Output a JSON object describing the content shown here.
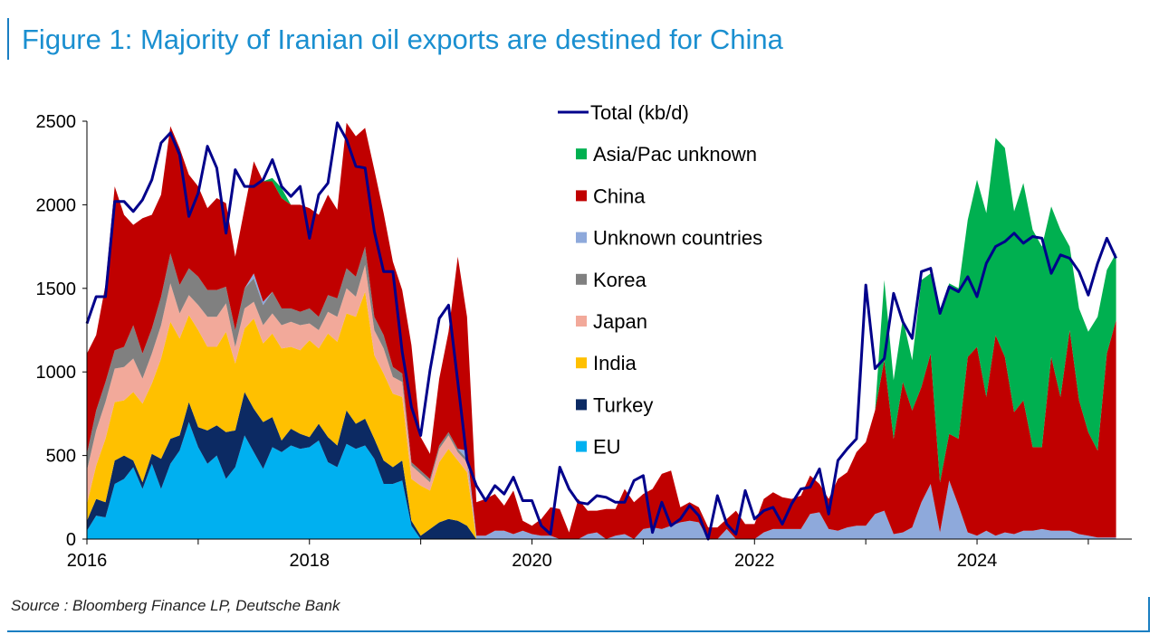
{
  "title": "Figure 1: Majority of Iranian oil exports are destined for China",
  "source": "Source : Bloomberg Finance LP, Deutsche Bank",
  "chart_data": {
    "type": "area",
    "stacked": true,
    "x_start": "2016-01",
    "x_step": "month",
    "x_ticks": [
      "2016",
      "2018",
      "2020",
      "2022",
      "2024"
    ],
    "y_ticks": [
      "0",
      "500",
      "1000",
      "1500",
      "2000",
      "2500"
    ],
    "ylim": [
      0,
      2500
    ],
    "legend_position": "top-right",
    "series": [
      {
        "name": "EU",
        "color": "#00b0f0",
        "values": [
          50,
          140,
          130,
          330,
          360,
          430,
          300,
          450,
          300,
          450,
          530,
          700,
          550,
          450,
          500,
          360,
          430,
          620,
          520,
          420,
          550,
          520,
          560,
          540,
          550,
          590,
          460,
          430,
          570,
          540,
          560,
          480,
          330,
          330,
          350,
          80
        ]
      },
      {
        "name": "Turkey",
        "color": "#0c2a63",
        "values": [
          60,
          100,
          90,
          140,
          140,
          40,
          40,
          60,
          180,
          150,
          90,
          120,
          120,
          200,
          180,
          280,
          220,
          260,
          260,
          280,
          180,
          70,
          100,
          90,
          60,
          100,
          150,
          130,
          200,
          150,
          160,
          120,
          140,
          100,
          120,
          30,
          20,
          60,
          100,
          120,
          110,
          80
        ]
      },
      {
        "name": "India",
        "color": "#ffc000",
        "values": [
          100,
          200,
          380,
          350,
          330,
          410,
          470,
          420,
          600,
          700,
          580,
          520,
          580,
          500,
          470,
          600,
          400,
          380,
          540,
          470,
          500,
          550,
          490,
          500,
          580,
          450,
          620,
          620,
          580,
          640,
          760,
          500,
          520,
          440,
          380,
          250,
          300,
          230,
          360,
          420,
          360,
          320
        ]
      },
      {
        "name": "Japan",
        "color": "#f2a99a",
        "values": [
          200,
          210,
          220,
          200,
          200,
          200,
          150,
          180,
          200,
          230,
          150,
          120,
          150,
          180,
          180,
          170,
          100,
          120,
          100,
          110,
          120,
          140,
          150,
          150,
          100,
          110,
          130,
          150,
          150,
          120,
          160,
          150,
          150,
          100,
          90,
          80,
          70,
          50,
          80,
          80,
          50,
          60
        ]
      },
      {
        "name": "Korea",
        "color": "#808080",
        "values": [
          100,
          120,
          120,
          110,
          120,
          200,
          150,
          150,
          170,
          180,
          170,
          160,
          170,
          160,
          160,
          100,
          100,
          120,
          140,
          120,
          130,
          100,
          80,
          80,
          90,
          80,
          100,
          110,
          120,
          120,
          110,
          80,
          80,
          60,
          50,
          20,
          20,
          20,
          20,
          20,
          20,
          20
        ]
      },
      {
        "name": "Unknown countries",
        "color": "#8ea9db",
        "values": [
          0,
          0,
          0,
          0,
          0,
          0,
          0,
          0,
          0,
          0,
          0,
          0,
          0,
          0,
          0,
          0,
          0,
          0,
          30,
          20,
          0,
          0,
          0,
          0,
          0,
          0,
          0,
          0,
          0,
          0,
          0,
          0,
          0,
          0,
          0,
          0,
          0,
          0,
          0,
          0,
          0,
          50,
          20,
          20,
          50,
          50,
          30,
          50,
          30,
          20,
          20,
          0,
          0,
          0,
          30,
          40,
          0,
          20,
          30,
          0,
          60,
          70,
          60,
          80,
          100,
          110,
          100,
          0,
          0,
          60,
          0,
          0,
          0,
          40,
          60,
          60,
          60,
          60,
          150,
          160,
          60,
          50,
          70,
          80,
          80,
          150,
          170,
          30,
          40,
          70,
          220,
          330,
          40,
          350,
          200,
          40,
          20,
          50,
          20,
          40,
          30,
          50,
          50,
          60,
          50,
          50,
          50,
          30,
          20,
          10,
          10,
          10,
          10
        ]
      },
      {
        "name": "China",
        "color": "#c00000",
        "values": [
          600,
          450,
          580,
          980,
          790,
          600,
          810,
          680,
          610,
          760,
          820,
          560,
          540,
          490,
          550,
          500,
          440,
          480,
          670,
          720,
          660,
          660,
          620,
          640,
          600,
          610,
          600,
          530,
          870,
          840,
          710,
          880,
          730,
          630,
          500,
          700,
          200,
          150,
          400,
          600,
          1150,
          800,
          200,
          220,
          220,
          150,
          260,
          60,
          50,
          100,
          170,
          180,
          40,
          240,
          140,
          130,
          180,
          160,
          270,
          220,
          210,
          230,
          330,
          330,
          90,
          110,
          90,
          70,
          70,
          60,
          170,
          90,
          90,
          200,
          220,
          190,
          180,
          200,
          230,
          170,
          180,
          310,
          330,
          440,
          500,
          620,
          900,
          570,
          900,
          700,
          690,
          780,
          300,
          280,
          400,
          1050,
          1130,
          800,
          1200,
          1050,
          730,
          780,
          500,
          490,
          1040,
          800,
          1200,
          800,
          620,
          520,
          1100,
          1300,
          1100,
          1200,
          950
        ]
      },
      {
        "name": "Asia/Pac unknown",
        "color": "#00b050",
        "values": [
          0,
          0,
          0,
          0,
          0,
          0,
          0,
          0,
          0,
          0,
          0,
          0,
          0,
          0,
          0,
          0,
          0,
          0,
          0,
          0,
          20,
          60,
          0,
          0,
          0,
          0,
          0,
          0,
          0,
          0,
          0,
          0,
          0,
          0,
          0,
          0,
          0,
          0,
          0,
          0,
          0,
          0,
          0,
          0,
          0,
          0,
          0,
          0,
          0,
          0,
          0,
          0,
          0,
          0,
          0,
          0,
          0,
          0,
          0,
          0,
          0,
          0,
          0,
          0,
          0,
          0,
          0,
          0,
          0,
          0,
          0,
          0,
          0,
          0,
          0,
          0,
          0,
          0,
          0,
          0,
          0,
          0,
          0,
          0,
          0,
          0,
          480,
          350,
          380,
          300,
          640,
          480,
          1000,
          900,
          900,
          820,
          1000,
          1100,
          1180,
          1250,
          1200,
          1300,
          1300,
          1200,
          900,
          1000,
          500,
          550,
          600,
          800,
          500,
          400,
          500,
          600,
          750
        ]
      },
      {
        "name": "Total (kb/d)",
        "color": "#00008b",
        "type": "line",
        "values": [
          1290,
          1450,
          1450,
          2020,
          2020,
          1960,
          2030,
          2150,
          2370,
          2430,
          2300,
          1930,
          2070,
          2350,
          2220,
          1830,
          2210,
          2110,
          2110,
          2150,
          2270,
          2110,
          2050,
          2110,
          1800,
          2060,
          2130,
          2490,
          2390,
          2230,
          2220,
          1840,
          1600,
          1600,
          1120,
          790,
          620,
          1010,
          1320,
          1400,
          940,
          470,
          320,
          230,
          320,
          270,
          370,
          230,
          230,
          80,
          30,
          430,
          300,
          220,
          210,
          260,
          250,
          220,
          220,
          350,
          380,
          40,
          220,
          80,
          120,
          200,
          140,
          0,
          260,
          90,
          30,
          290,
          120,
          170,
          190,
          90,
          210,
          300,
          310,
          420,
          150,
          470,
          540,
          600,
          1520,
          1020,
          1080,
          1470,
          1300,
          1200,
          1600,
          1620,
          1350,
          1510,
          1480,
          1570,
          1450,
          1650,
          1750,
          1780,
          1830,
          1770,
          1810,
          1800,
          1590,
          1700,
          1680,
          1600,
          1460,
          1650,
          1800,
          1680
        ]
      }
    ],
    "legend_order": [
      "Total (kb/d)",
      "Asia/Pac unknown",
      "China",
      "Unknown countries",
      "Korea",
      "Japan",
      "India",
      "Turkey",
      "EU"
    ]
  }
}
